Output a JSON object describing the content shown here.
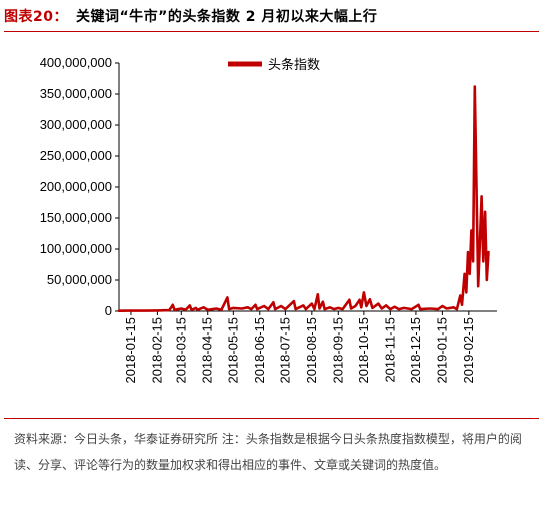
{
  "figure_label": "图表20：",
  "figure_title": "关键词“牛市”的头条指数 2 月初以来大幅上行",
  "footnote": "资料来源：今日头条，华泰证券研究所  注：头条指数是根据今日头条热度指数模型，将用户的阅读、分享、评论等行为的数量加权求和得出相应的事件、文章或关键词的热度值。",
  "colors": {
    "series": "#c00000",
    "accent": "#c00000"
  },
  "chart_data": {
    "type": "line",
    "title": "",
    "xlabel": "",
    "ylabel": "",
    "ylim": [
      0,
      400000000
    ],
    "yticks": [
      0,
      50000000,
      100000000,
      150000000,
      200000000,
      250000000,
      300000000,
      350000000,
      400000000
    ],
    "ytick_labels": [
      "0",
      "50,000,000",
      "100,000,000",
      "150,000,000",
      "200,000,000",
      "250,000,000",
      "300,000,000",
      "350,000,000",
      "400,000,000"
    ],
    "xlim": [
      "2018-01-01",
      "2019-03-20"
    ],
    "xtick_labels": [
      "2018-01-15",
      "2018-02-15",
      "2018-03-15",
      "2018-04-15",
      "2018-05-15",
      "2018-06-15",
      "2018-07-15",
      "2018-08-15",
      "2018-09-15",
      "2018-10-15",
      "2018-11-15",
      "2018-12-15",
      "2019-01-15",
      "2019-02-15"
    ],
    "grid": false,
    "legend": "top-center",
    "series": [
      {
        "name": "头条指数",
        "points": [
          [
            "2018-01-01",
            500000
          ],
          [
            "2018-01-15",
            800000
          ],
          [
            "2018-02-01",
            600000
          ],
          [
            "2018-02-15",
            1000000
          ],
          [
            "2018-03-01",
            1500000
          ],
          [
            "2018-03-05",
            10000000
          ],
          [
            "2018-03-07",
            2000000
          ],
          [
            "2018-03-15",
            4000000
          ],
          [
            "2018-03-20",
            2000000
          ],
          [
            "2018-03-25",
            9000000
          ],
          [
            "2018-03-27",
            2000000
          ],
          [
            "2018-04-01",
            5000000
          ],
          [
            "2018-04-03",
            2000000
          ],
          [
            "2018-04-10",
            6000000
          ],
          [
            "2018-04-15",
            2000000
          ],
          [
            "2018-04-25",
            4000000
          ],
          [
            "2018-05-01",
            2000000
          ],
          [
            "2018-05-08",
            22000000
          ],
          [
            "2018-05-10",
            3000000
          ],
          [
            "2018-05-15",
            5000000
          ],
          [
            "2018-05-25",
            4000000
          ],
          [
            "2018-06-01",
            6000000
          ],
          [
            "2018-06-05",
            3000000
          ],
          [
            "2018-06-10",
            10000000
          ],
          [
            "2018-06-12",
            3000000
          ],
          [
            "2018-06-20",
            8000000
          ],
          [
            "2018-06-25",
            3000000
          ],
          [
            "2018-07-01",
            14000000
          ],
          [
            "2018-07-03",
            3000000
          ],
          [
            "2018-07-10",
            8000000
          ],
          [
            "2018-07-15",
            3000000
          ],
          [
            "2018-07-25",
            16000000
          ],
          [
            "2018-07-27",
            3000000
          ],
          [
            "2018-08-05",
            9000000
          ],
          [
            "2018-08-08",
            3000000
          ],
          [
            "2018-08-15",
            12000000
          ],
          [
            "2018-08-18",
            3000000
          ],
          [
            "2018-08-22",
            27000000
          ],
          [
            "2018-08-24",
            4000000
          ],
          [
            "2018-08-28",
            15000000
          ],
          [
            "2018-08-30",
            3000000
          ],
          [
            "2018-09-05",
            6000000
          ],
          [
            "2018-09-10",
            3000000
          ],
          [
            "2018-09-15",
            5000000
          ],
          [
            "2018-09-20",
            3000000
          ],
          [
            "2018-09-28",
            18000000
          ],
          [
            "2018-09-30",
            4000000
          ],
          [
            "2018-10-05",
            8000000
          ],
          [
            "2018-10-10",
            18000000
          ],
          [
            "2018-10-12",
            6000000
          ],
          [
            "2018-10-15",
            30000000
          ],
          [
            "2018-10-18",
            8000000
          ],
          [
            "2018-10-22",
            19000000
          ],
          [
            "2018-10-25",
            5000000
          ],
          [
            "2018-11-01",
            12000000
          ],
          [
            "2018-11-05",
            4000000
          ],
          [
            "2018-11-10",
            9000000
          ],
          [
            "2018-11-15",
            3000000
          ],
          [
            "2018-11-20",
            7000000
          ],
          [
            "2018-11-25",
            3000000
          ],
          [
            "2018-12-01",
            5000000
          ],
          [
            "2018-12-10",
            3000000
          ],
          [
            "2018-12-18",
            10000000
          ],
          [
            "2018-12-20",
            3000000
          ],
          [
            "2019-01-01",
            4000000
          ],
          [
            "2019-01-10",
            3000000
          ],
          [
            "2019-01-15",
            8000000
          ],
          [
            "2019-01-20",
            4000000
          ],
          [
            "2019-01-28",
            6000000
          ],
          [
            "2019-02-01",
            3000000
          ],
          [
            "2019-02-05",
            25000000
          ],
          [
            "2019-02-07",
            10000000
          ],
          [
            "2019-02-10",
            60000000
          ],
          [
            "2019-02-12",
            30000000
          ],
          [
            "2019-02-14",
            95000000
          ],
          [
            "2019-02-16",
            60000000
          ],
          [
            "2019-02-18",
            130000000
          ],
          [
            "2019-02-20",
            80000000
          ],
          [
            "2019-02-22",
            362000000
          ],
          [
            "2019-02-24",
            200000000
          ],
          [
            "2019-02-26",
            40000000
          ],
          [
            "2019-02-28",
            110000000
          ],
          [
            "2019-03-02",
            185000000
          ],
          [
            "2019-03-04",
            80000000
          ],
          [
            "2019-03-06",
            160000000
          ],
          [
            "2019-03-08",
            50000000
          ],
          [
            "2019-03-10",
            95000000
          ]
        ]
      }
    ]
  }
}
